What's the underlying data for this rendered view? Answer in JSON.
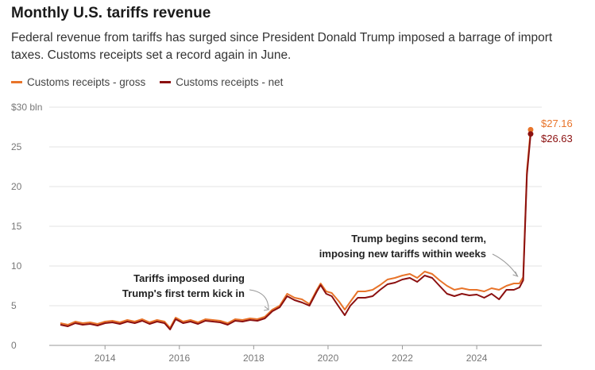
{
  "title": "Monthly U.S. tariffs revenue",
  "subtitle": "Federal revenue from tariffs has surged since President Donald Trump imposed a barrage of import taxes. Customs receipts set a record again in June.",
  "colors": {
    "gross": "#e8742a",
    "net": "#8b1010",
    "grid": "#e3e3e3",
    "axis": "#999999"
  },
  "chart_data": {
    "type": "line",
    "title": "Monthly U.S. tariffs revenue",
    "ylim": [
      0,
      30
    ],
    "y_ticks": [
      0,
      5,
      10,
      15,
      20,
      25,
      30
    ],
    "y_tick_labels": [
      "0",
      "5",
      "10",
      "15",
      "20",
      "25",
      "$30 bln"
    ],
    "x_range": [
      2012.5,
      2025.75
    ],
    "x_ticks": [
      2014,
      2016,
      2018,
      2020,
      2022,
      2024
    ],
    "x_tick_labels": [
      "2014",
      "2016",
      "2018",
      "2020",
      "2022",
      "2024"
    ],
    "grid": true,
    "legend_position": "top-left",
    "series": [
      {
        "name": "Customs receipts - gross",
        "x": [
          2012.8,
          2013.0,
          2013.2,
          2013.4,
          2013.6,
          2013.8,
          2014.0,
          2014.2,
          2014.4,
          2014.6,
          2014.8,
          2015.0,
          2015.2,
          2015.4,
          2015.6,
          2015.75,
          2015.9,
          2016.1,
          2016.3,
          2016.5,
          2016.7,
          2016.9,
          2017.1,
          2017.3,
          2017.5,
          2017.7,
          2017.9,
          2018.1,
          2018.3,
          2018.5,
          2018.7,
          2018.9,
          2019.1,
          2019.3,
          2019.5,
          2019.7,
          2019.8,
          2019.95,
          2020.1,
          2020.3,
          2020.45,
          2020.6,
          2020.8,
          2021.0,
          2021.2,
          2021.4,
          2021.6,
          2021.8,
          2022.0,
          2022.2,
          2022.4,
          2022.6,
          2022.8,
          2023.0,
          2023.2,
          2023.4,
          2023.6,
          2023.8,
          2024.0,
          2024.2,
          2024.4,
          2024.6,
          2024.8,
          2025.0,
          2025.15,
          2025.25,
          2025.35,
          2025.45
        ],
        "values": [
          2.8,
          2.6,
          3.0,
          2.8,
          2.9,
          2.7,
          3.0,
          3.1,
          2.9,
          3.2,
          3.0,
          3.3,
          2.9,
          3.2,
          3.0,
          2.2,
          3.5,
          3.0,
          3.2,
          2.9,
          3.3,
          3.2,
          3.1,
          2.8,
          3.3,
          3.2,
          3.4,
          3.3,
          3.6,
          4.5,
          5.0,
          6.5,
          6.0,
          5.8,
          5.2,
          7.0,
          7.8,
          6.8,
          6.6,
          5.5,
          4.5,
          5.5,
          6.8,
          6.8,
          7.0,
          7.6,
          8.3,
          8.5,
          8.8,
          9.0,
          8.5,
          9.3,
          9.0,
          8.2,
          7.5,
          7.0,
          7.2,
          7.0,
          7.0,
          6.8,
          7.2,
          7.0,
          7.5,
          7.8,
          7.8,
          8.6,
          22.0,
          27.16
        ]
      },
      {
        "name": "Customs receipts - net",
        "x": [
          2012.8,
          2013.0,
          2013.2,
          2013.4,
          2013.6,
          2013.8,
          2014.0,
          2014.2,
          2014.4,
          2014.6,
          2014.8,
          2015.0,
          2015.2,
          2015.4,
          2015.6,
          2015.75,
          2015.9,
          2016.1,
          2016.3,
          2016.5,
          2016.7,
          2016.9,
          2017.1,
          2017.3,
          2017.5,
          2017.7,
          2017.9,
          2018.1,
          2018.3,
          2018.5,
          2018.7,
          2018.9,
          2019.1,
          2019.3,
          2019.5,
          2019.7,
          2019.8,
          2019.95,
          2020.1,
          2020.3,
          2020.45,
          2020.6,
          2020.8,
          2021.0,
          2021.2,
          2021.4,
          2021.6,
          2021.8,
          2022.0,
          2022.2,
          2022.4,
          2022.6,
          2022.8,
          2023.0,
          2023.2,
          2023.4,
          2023.6,
          2023.8,
          2024.0,
          2024.2,
          2024.4,
          2024.6,
          2024.8,
          2025.0,
          2025.15,
          2025.25,
          2025.35,
          2025.45
        ],
        "values": [
          2.6,
          2.4,
          2.8,
          2.6,
          2.7,
          2.5,
          2.8,
          2.9,
          2.7,
          3.0,
          2.8,
          3.1,
          2.7,
          3.0,
          2.8,
          2.0,
          3.3,
          2.8,
          3.0,
          2.7,
          3.1,
          3.0,
          2.9,
          2.6,
          3.1,
          3.0,
          3.2,
          3.1,
          3.4,
          4.3,
          4.8,
          6.2,
          5.7,
          5.4,
          5.0,
          6.8,
          7.6,
          6.5,
          6.2,
          4.8,
          3.8,
          5.0,
          6.0,
          6.0,
          6.2,
          7.0,
          7.7,
          7.9,
          8.3,
          8.5,
          8.0,
          8.8,
          8.5,
          7.5,
          6.5,
          6.2,
          6.5,
          6.3,
          6.4,
          6.0,
          6.5,
          5.8,
          7.0,
          7.0,
          7.3,
          8.2,
          21.5,
          26.63
        ]
      }
    ],
    "end_labels": [
      "$27.16",
      "$26.63"
    ],
    "annotations": [
      {
        "lines": [
          "Tariffs imposed during",
          "Trump's first term kick in"
        ],
        "x": 2018.4,
        "y": 4.3
      },
      {
        "lines": [
          "Trump begins second term,",
          "imposing new tariffs within weeks"
        ],
        "x": 2025.1,
        "y": 8.3
      }
    ]
  }
}
